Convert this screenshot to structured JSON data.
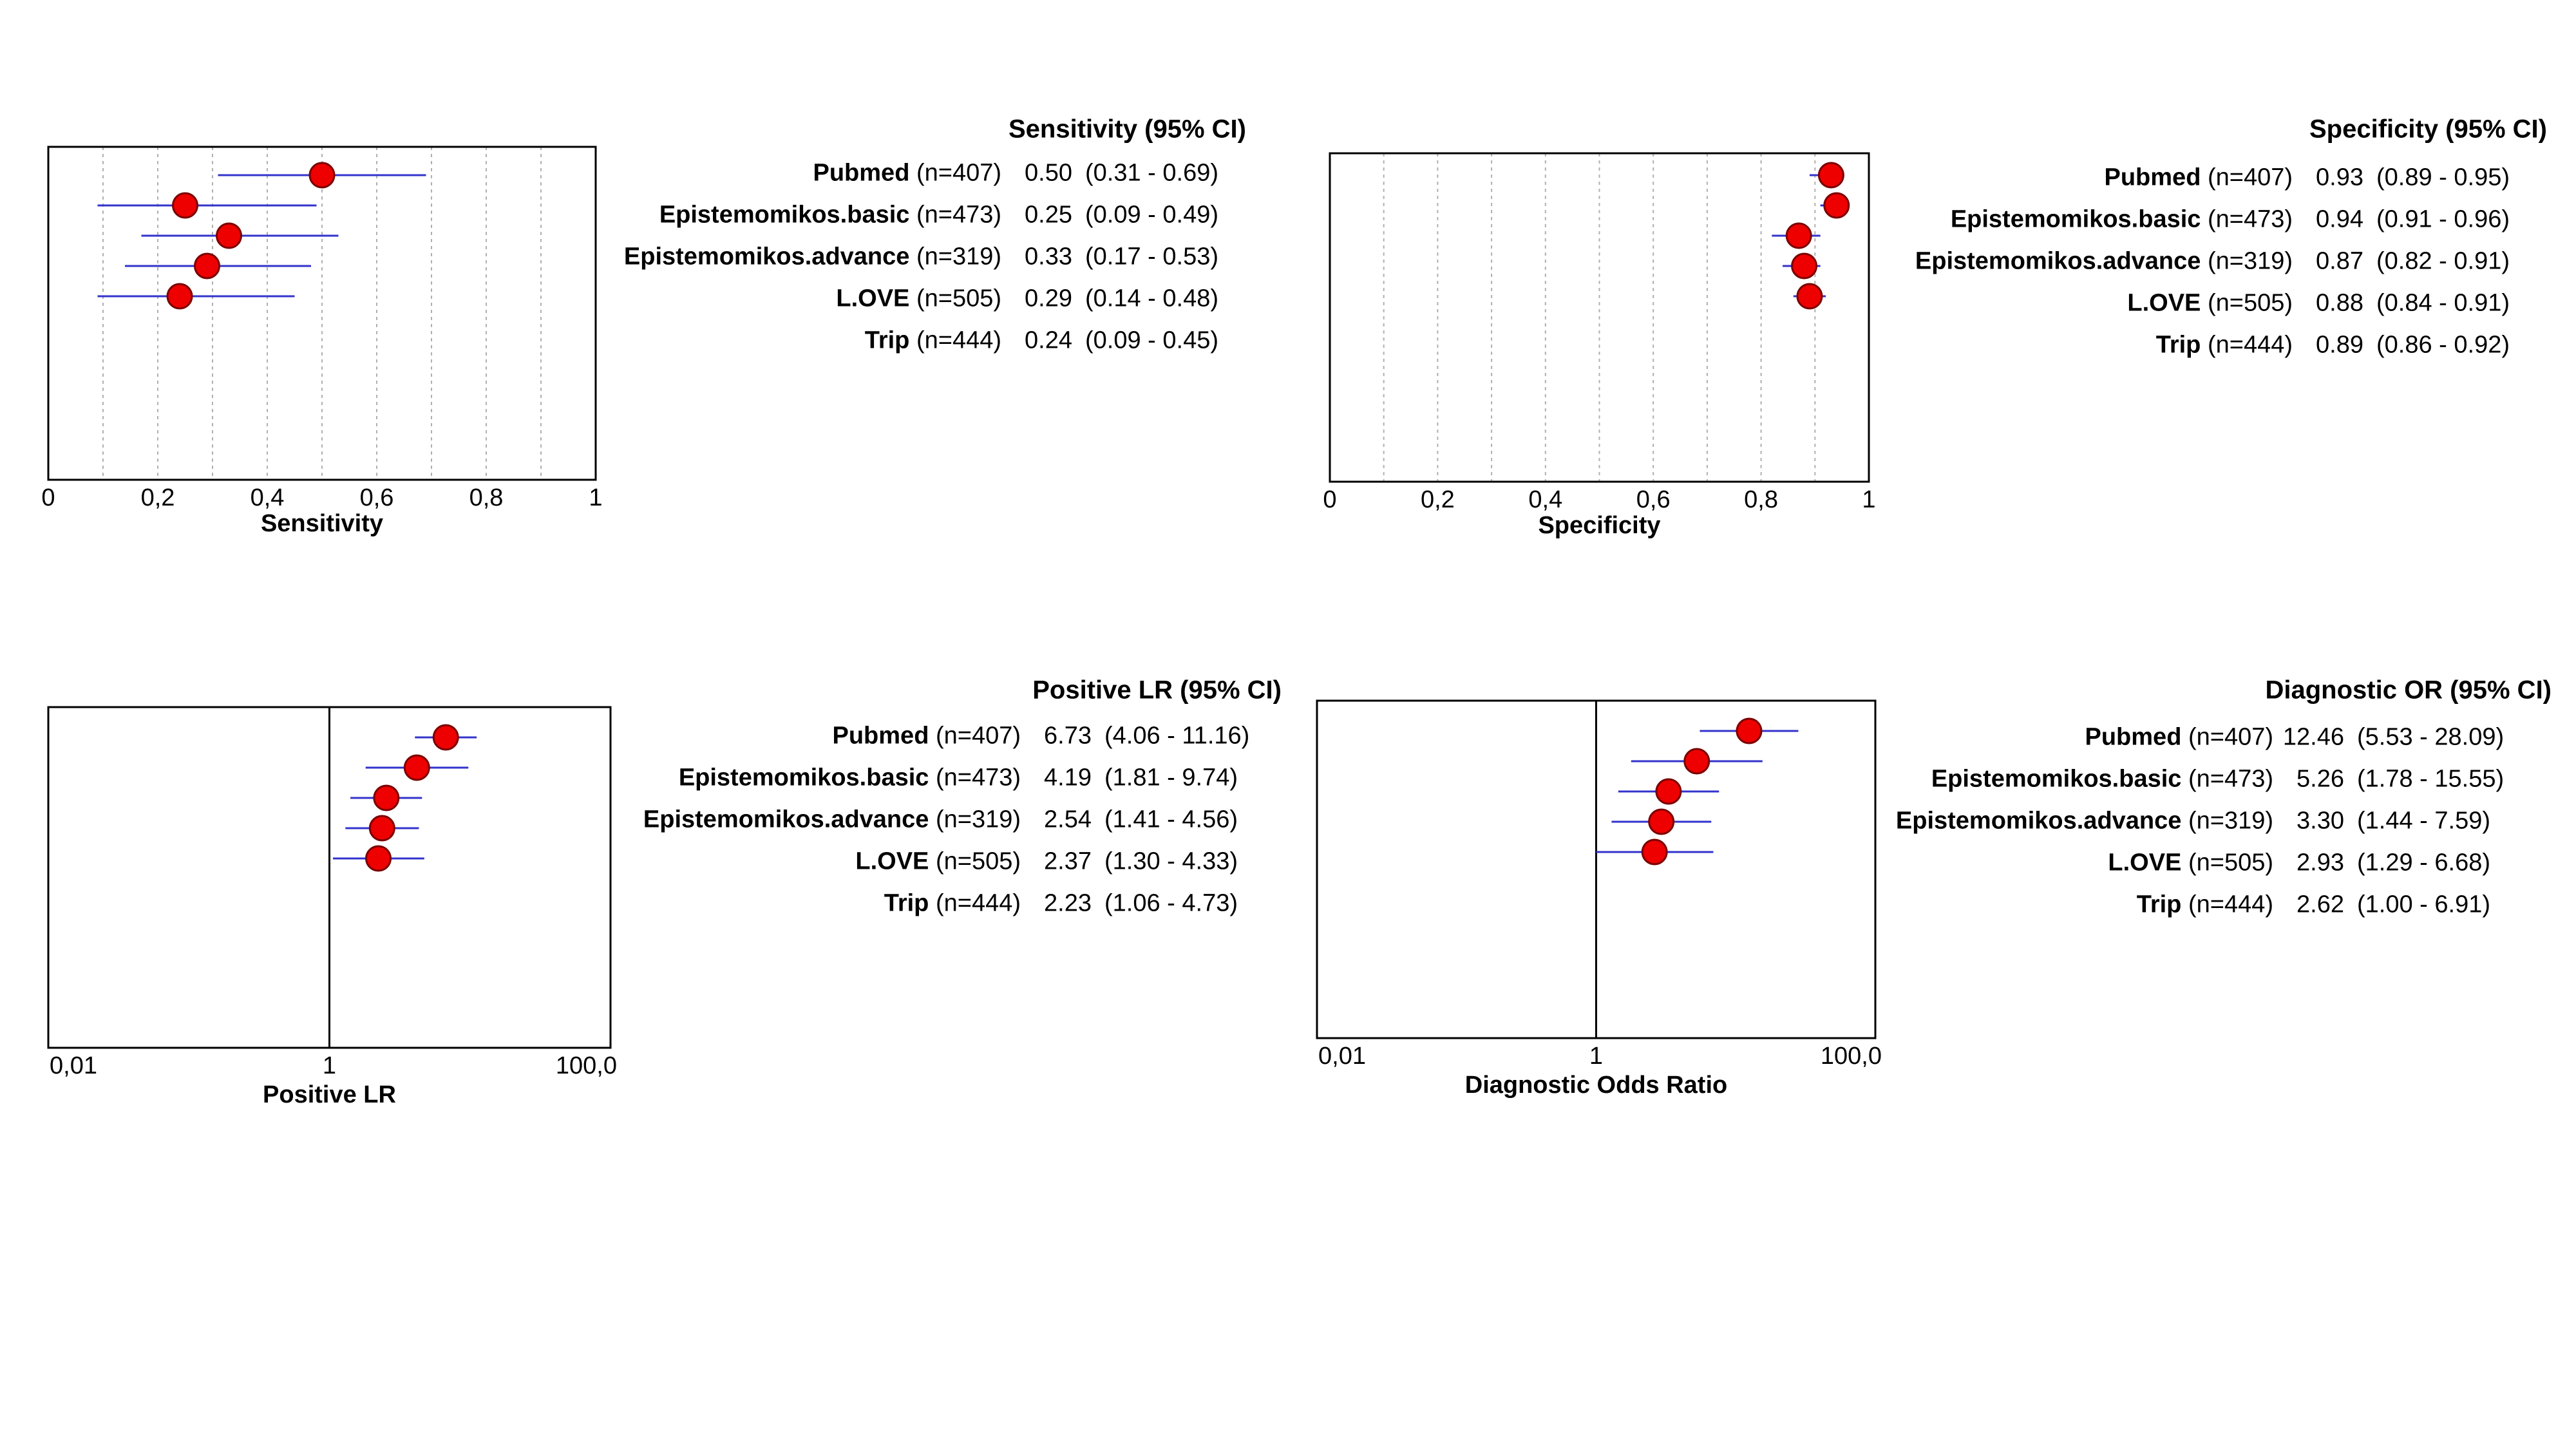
{
  "colors": {
    "point_fill": "#ee0000",
    "point_stroke": "#7a0000",
    "ci_line": "#3333cc",
    "grid": "#b0b0b0",
    "axis": "#000000"
  },
  "studies": [
    {
      "name": "Pubmed",
      "n": "(n=407)"
    },
    {
      "name": "Epistemomikos.basic",
      "n": "(n=473)"
    },
    {
      "name": "Epistemomikos.advance",
      "n": "(n=319)"
    },
    {
      "name": "L.OVE",
      "n": "(n=505)"
    },
    {
      "name": "Trip",
      "n": "(n=444)"
    }
  ],
  "chart_data": [
    {
      "type": "forest",
      "scale": "linear",
      "xlim": [
        0,
        1
      ],
      "ticks": [
        0,
        0.2,
        0.4,
        0.6,
        0.8,
        1
      ],
      "tick_labels": [
        "0",
        "0,2",
        "0,4",
        "0,6",
        "0,8",
        "1"
      ],
      "grid": true,
      "xlabel": "Sensitivity",
      "table_title": "Sensitivity (95% CI)",
      "categories": [
        "Pubmed",
        "Epistemomikos.basic",
        "Epistemomikos.advance",
        "L.OVE",
        "Trip"
      ],
      "values": [
        0.5,
        0.25,
        0.33,
        0.29,
        0.24
      ],
      "lower": [
        0.31,
        0.09,
        0.17,
        0.14,
        0.09
      ],
      "upper": [
        0.69,
        0.49,
        0.53,
        0.48,
        0.45
      ],
      "value_labels": [
        "0.50",
        "0.25",
        "0.33",
        "0.29",
        "0.24"
      ],
      "ci_labels": [
        "(0.31 - 0.69)",
        "(0.09 - 0.49)",
        "(0.17 - 0.53)",
        "(0.14 - 0.48)",
        "(0.09 - 0.45)"
      ]
    },
    {
      "type": "forest",
      "scale": "linear",
      "xlim": [
        0,
        1
      ],
      "ticks": [
        0,
        0.2,
        0.4,
        0.6,
        0.8,
        1
      ],
      "tick_labels": [
        "0",
        "0,2",
        "0,4",
        "0,6",
        "0,8",
        "1"
      ],
      "grid": true,
      "xlabel": "Specificity",
      "table_title": "Specificity (95% CI)",
      "categories": [
        "Pubmed",
        "Epistemomikos.basic",
        "Epistemomikos.advance",
        "L.OVE",
        "Trip"
      ],
      "values": [
        0.93,
        0.94,
        0.87,
        0.88,
        0.89
      ],
      "lower": [
        0.89,
        0.91,
        0.82,
        0.84,
        0.86
      ],
      "upper": [
        0.95,
        0.96,
        0.91,
        0.91,
        0.92
      ],
      "value_labels": [
        "0.93",
        "0.94",
        "0.87",
        "0.88",
        "0.89"
      ],
      "ci_labels": [
        "(0.89 - 0.95)",
        "(0.91 - 0.96)",
        "(0.82 - 0.91)",
        "(0.84 - 0.91)",
        "(0.86 - 0.92)"
      ]
    },
    {
      "type": "forest",
      "scale": "log",
      "xlim": [
        0.01,
        100
      ],
      "ticks": [
        0.01,
        1,
        100
      ],
      "tick_labels": [
        "0,01",
        "1",
        "100,0"
      ],
      "grid": false,
      "reference_line": 1,
      "xlabel": "Positive LR",
      "table_title": "Positive LR (95% CI)",
      "categories": [
        "Pubmed",
        "Epistemomikos.basic",
        "Epistemomikos.advance",
        "L.OVE",
        "Trip"
      ],
      "values": [
        6.73,
        4.19,
        2.54,
        2.37,
        2.23
      ],
      "lower": [
        4.06,
        1.81,
        1.41,
        1.3,
        1.06
      ],
      "upper": [
        11.16,
        9.74,
        4.56,
        4.33,
        4.73
      ],
      "value_labels": [
        "6.73",
        "4.19",
        "2.54",
        "2.37",
        "2.23"
      ],
      "ci_labels": [
        "(4.06 - 11.16)",
        "(1.81 - 9.74)",
        "(1.41 - 4.56)",
        "(1.30 - 4.33)",
        "(1.06 - 4.73)"
      ]
    },
    {
      "type": "forest",
      "scale": "log",
      "xlim": [
        0.01,
        100
      ],
      "ticks": [
        0.01,
        1,
        100
      ],
      "tick_labels": [
        "0,01",
        "1",
        "100,0"
      ],
      "grid": false,
      "reference_line": 1,
      "xlabel": "Diagnostic Odds Ratio",
      "table_title": "Diagnostic OR (95% CI)",
      "categories": [
        "Pubmed",
        "Epistemomikos.basic",
        "Epistemomikos.advance",
        "L.OVE",
        "Trip"
      ],
      "values": [
        12.46,
        5.26,
        3.3,
        2.93,
        2.62
      ],
      "lower": [
        5.53,
        1.78,
        1.44,
        1.29,
        1.0
      ],
      "upper": [
        28.09,
        15.55,
        7.59,
        6.68,
        6.91
      ],
      "value_labels": [
        "12.46",
        "5.26",
        "3.30",
        "2.93",
        "2.62"
      ],
      "ci_labels": [
        "(5.53 - 28.09)",
        "(1.78 - 15.55)",
        "(1.44 - 7.59)",
        "(1.29 - 6.68)",
        "(1.00 - 6.91)"
      ]
    }
  ]
}
